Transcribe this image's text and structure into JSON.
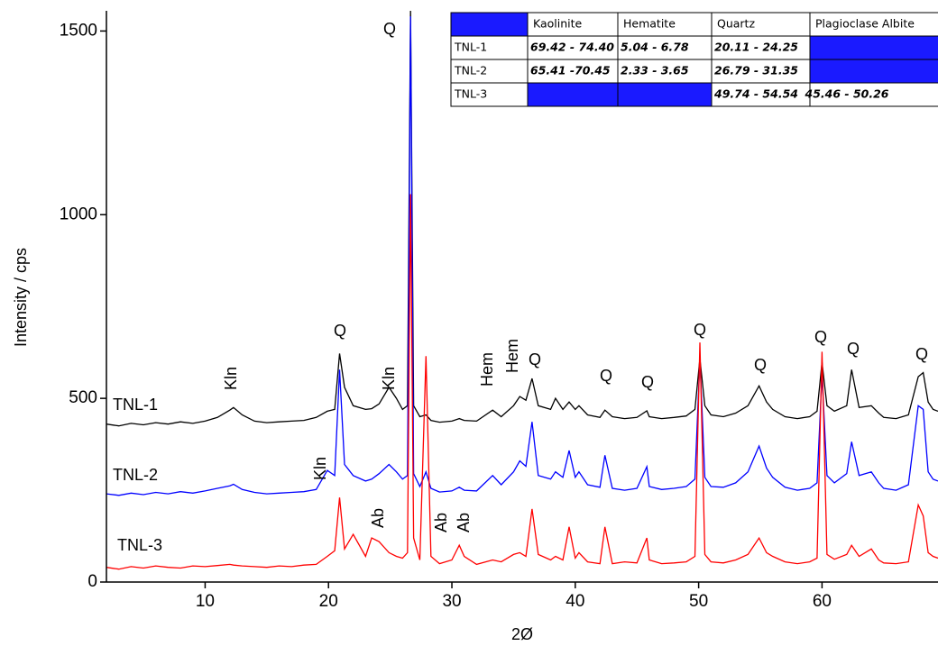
{
  "chart_data": {
    "type": "line",
    "x_label": "2Ø",
    "y_label": "Intensity / cps",
    "xlim": [
      2,
      69.4
    ],
    "ylim": [
      0,
      1555
    ],
    "xticks": [
      10,
      20,
      30,
      40,
      50,
      60
    ],
    "yticks": [
      0,
      500,
      1000,
      1500
    ],
    "x": [
      2,
      3,
      4,
      5,
      6,
      7,
      8,
      9,
      10,
      11,
      12,
      12.3,
      13,
      14,
      15,
      16,
      17,
      18,
      19,
      19.9,
      20.5,
      20.9,
      21.3,
      22,
      23,
      23.5,
      24.1,
      24.9,
      25.5,
      26,
      26.4,
      26.65,
      26.9,
      27.4,
      27.9,
      28.3,
      29,
      30,
      30.6,
      31,
      32,
      33.3,
      34,
      35,
      35.5,
      36,
      36.5,
      37,
      38,
      38.4,
      39,
      39.5,
      40,
      40.3,
      41,
      42,
      42.4,
      43,
      44,
      45,
      45.8,
      46,
      47,
      48,
      49,
      49.7,
      50.1,
      50.5,
      51,
      52,
      53,
      54,
      54.9,
      55.5,
      56,
      57,
      58,
      59,
      59.6,
      60,
      60.4,
      61,
      62,
      62.4,
      63,
      64,
      64.6,
      65,
      66,
      67,
      67.8,
      68.2,
      68.6,
      69,
      69.4
    ],
    "series": [
      {
        "name": "TNL-1",
        "color": "#000000",
        "values": [
          430,
          425,
          432,
          428,
          434,
          430,
          436,
          432,
          438,
          448,
          468,
          475,
          455,
          438,
          434,
          436,
          438,
          440,
          448,
          465,
          470,
          622,
          530,
          480,
          470,
          472,
          485,
          530,
          500,
          470,
          480,
          1555,
          480,
          450,
          455,
          440,
          435,
          438,
          445,
          440,
          438,
          468,
          450,
          480,
          505,
          495,
          554,
          480,
          470,
          500,
          470,
          490,
          470,
          480,
          455,
          448,
          468,
          450,
          445,
          448,
          466,
          450,
          445,
          448,
          452,
          470,
          608,
          480,
          455,
          450,
          460,
          480,
          534,
          490,
          470,
          450,
          445,
          450,
          465,
          598,
          480,
          465,
          480,
          578,
          475,
          480,
          460,
          448,
          445,
          455,
          559,
          570,
          490,
          470,
          465
        ]
      },
      {
        "name": "TNL-2",
        "color": "#0000ff",
        "values": [
          240,
          236,
          242,
          238,
          244,
          240,
          246,
          242,
          248,
          255,
          262,
          266,
          252,
          244,
          240,
          242,
          244,
          246,
          252,
          304,
          290,
          578,
          320,
          290,
          275,
          280,
          295,
          320,
          300,
          280,
          290,
          1540,
          295,
          260,
          300,
          255,
          245,
          248,
          258,
          250,
          248,
          290,
          265,
          300,
          330,
          315,
          436,
          290,
          280,
          300,
          285,
          358,
          285,
          300,
          265,
          258,
          345,
          255,
          250,
          255,
          314,
          260,
          252,
          255,
          260,
          280,
          608,
          285,
          260,
          258,
          270,
          300,
          370,
          310,
          285,
          258,
          250,
          255,
          270,
          566,
          290,
          270,
          295,
          382,
          290,
          300,
          270,
          255,
          250,
          265,
          480,
          470,
          300,
          280,
          275
        ]
      },
      {
        "name": "TNL-3",
        "color": "#ff0000",
        "values": [
          40,
          35,
          42,
          38,
          44,
          40,
          38,
          44,
          42,
          45,
          48,
          46,
          44,
          42,
          40,
          44,
          42,
          46,
          48,
          70,
          85,
          230,
          90,
          130,
          70,
          120,
          110,
          80,
          70,
          65,
          80,
          1056,
          120,
          60,
          615,
          70,
          50,
          60,
          100,
          70,
          48,
          60,
          55,
          75,
          80,
          70,
          199,
          75,
          60,
          70,
          60,
          150,
          65,
          80,
          55,
          50,
          150,
          50,
          55,
          52,
          120,
          60,
          50,
          52,
          55,
          70,
          652,
          75,
          55,
          52,
          60,
          75,
          120,
          80,
          70,
          55,
          50,
          55,
          65,
          627,
          75,
          62,
          75,
          100,
          70,
          90,
          60,
          52,
          50,
          55,
          210,
          180,
          80,
          70,
          65
        ]
      }
    ],
    "annotations": [
      {
        "text": "Q",
        "color": "#000000"
      },
      {
        "text": "Kln",
        "color": "#000000"
      },
      {
        "text": "Q",
        "color": "#000000"
      },
      {
        "text": "Kln",
        "color": "#000000"
      },
      {
        "text": "Hem",
        "color": "#ff0000"
      },
      {
        "text": "Hem",
        "color": "#ff0000"
      },
      {
        "text": "Q",
        "color": "#000000"
      },
      {
        "text": "Q",
        "color": "#000000"
      },
      {
        "text": "Q",
        "color": "#000000"
      },
      {
        "text": "Q",
        "color": "#000000"
      },
      {
        "text": "Q",
        "color": "#000000"
      },
      {
        "text": "Q",
        "color": "#000000"
      },
      {
        "text": "Q",
        "color": "#000000"
      },
      {
        "text": "Q",
        "color": "#000000"
      },
      {
        "text": "Kln",
        "color": "#000000"
      },
      {
        "text": "Ab",
        "color": "#0000ff"
      },
      {
        "text": "Ab",
        "color": "#0000ff"
      },
      {
        "text": "Ab",
        "color": "#0000ff"
      }
    ],
    "table": {
      "fill": "#1a1aff",
      "columns": [
        "Kaolinite",
        "Hematite",
        "Quartz",
        "Plagioclase Albite"
      ],
      "rows": [
        {
          "name": "TNL-1",
          "cells": [
            "69.42 - 74.40",
            "5.04 - 6.78",
            "20.11 - 24.25",
            null
          ]
        },
        {
          "name": "TNL-2",
          "cells": [
            "65.41 -70.45",
            "2.33 - 3.65",
            "26.79 - 31.35",
            null
          ]
        },
        {
          "name": "TNL-3",
          "cells": [
            null,
            null,
            "49.74 - 54.54",
            "45.46 - 50.26"
          ]
        }
      ]
    }
  }
}
